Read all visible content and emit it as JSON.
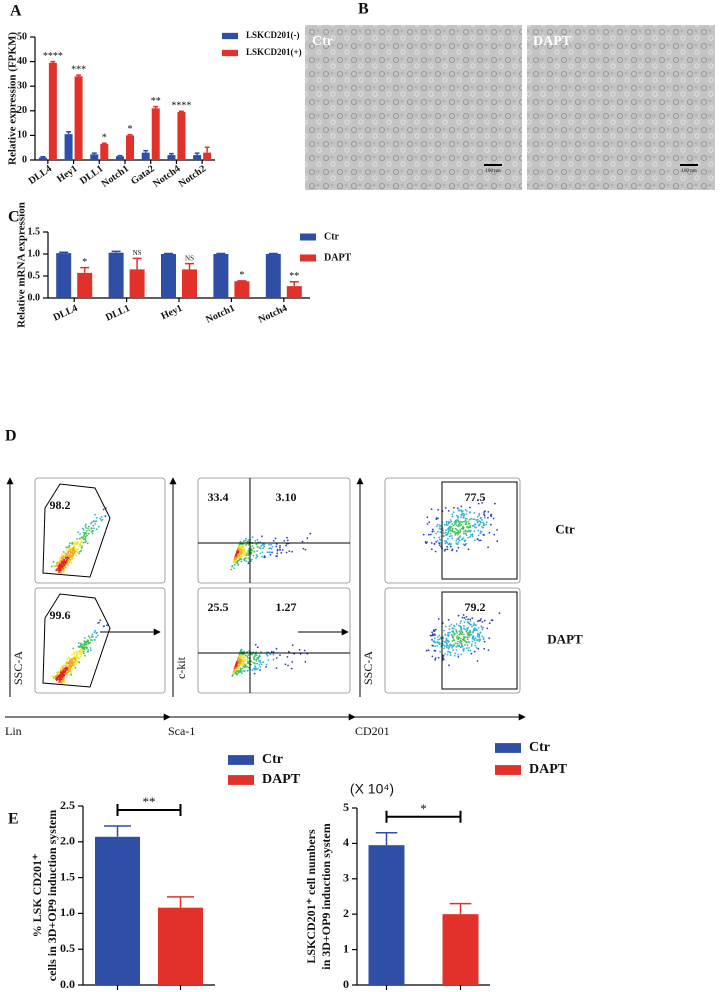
{
  "figure_labels": [
    "A",
    "B",
    "C",
    "D",
    "E"
  ],
  "chart_data": [
    {
      "type": "bar",
      "ylabel": "Relative expression (FPKM)",
      "categories": [
        "DLL4",
        "Hey1",
        "DLL1",
        "Notch1",
        "Gata2",
        "Notch4",
        "Notch2"
      ],
      "series": [
        {
          "name": "LSKCD201(-)",
          "color": "#2f4fa6",
          "values": [
            1,
            10.5,
            2.3,
            1.5,
            3,
            2,
            2
          ],
          "errors": [
            0.3,
            1,
            0.5,
            0.3,
            0.8,
            0.6,
            0.8
          ]
        },
        {
          "name": "LSKCD201(+)",
          "color": "#e2302a",
          "values": [
            39.5,
            34,
            6.5,
            10,
            21,
            19.5,
            3
          ],
          "errors": [
            0.5,
            0.5,
            0.3,
            0.3,
            0.7,
            0.3,
            2.2
          ],
          "annotations": [
            "****",
            "***",
            "*",
            "*",
            "**",
            "****",
            null
          ]
        }
      ],
      "ylim": [
        0,
        50
      ],
      "yticks": [
        0,
        10,
        20,
        30,
        40,
        50
      ]
    },
    {
      "type": "bar",
      "ylabel": "Relative mRNA expression",
      "categories": [
        "DLL4",
        "DLL1",
        "Hey1",
        "Notch1",
        "Notch4"
      ],
      "series": [
        {
          "name": "Ctr",
          "color": "#2f4fa6",
          "values": [
            1.02,
            1.03,
            1.0,
            1.0,
            1.0
          ],
          "errors": [
            0.02,
            0.03,
            0.01,
            0.01,
            0.01
          ]
        },
        {
          "name": "DAPT",
          "color": "#e2302a",
          "values": [
            0.57,
            0.65,
            0.65,
            0.38,
            0.27
          ],
          "errors": [
            0.12,
            0.25,
            0.13,
            0.01,
            0.1
          ],
          "annotations": [
            "*",
            "NS",
            "NS",
            "*",
            "**"
          ]
        }
      ],
      "ylim": [
        0,
        1.5
      ],
      "yticks": [
        {
          "value": 0,
          "label": "0.0"
        },
        {
          "value": 0.5,
          "label": "0.5"
        },
        {
          "value": 1,
          "label": "1.0"
        },
        {
          "value": 1.5,
          "label": "1.5"
        }
      ]
    },
    {
      "type": "bar",
      "ylabel": [
        "% LSK CD201⁺",
        "cells in 3D+OP9 induction system"
      ],
      "categories": [
        null
      ],
      "series": [
        {
          "name": "Ctr",
          "color": "#2f4fa6",
          "values": [
            2.07
          ],
          "errors": [
            0.15
          ]
        },
        {
          "name": "DAPT",
          "color": "#e2302a",
          "values": [
            1.08
          ],
          "errors": [
            0.15
          ]
        }
      ],
      "significance": "**",
      "ylim": [
        0,
        2.5
      ],
      "yticks": [
        {
          "value": 0,
          "label": "0.0"
        },
        {
          "value": 0.5,
          "label": "0.5"
        },
        {
          "value": 1,
          "label": "1.0"
        },
        {
          "value": 1.5,
          "label": "1.5"
        },
        {
          "value": 2,
          "label": "2.0"
        },
        {
          "value": 2.5,
          "label": "2.5"
        }
      ]
    },
    {
      "type": "bar",
      "ylabel": [
        "LSKCD201⁺ cell numbers",
        "in 3D+OP9 induction system"
      ],
      "multiplier": "(X 10⁴)",
      "categories": [
        null
      ],
      "series": [
        {
          "name": "Ctr",
          "color": "#2f4fa6",
          "values": [
            3.95
          ],
          "errors": [
            0.35
          ]
        },
        {
          "name": "DAPT",
          "color": "#e2302a",
          "values": [
            2.0
          ],
          "errors": [
            0.3
          ]
        }
      ],
      "significance": "*",
      "ylim": [
        0,
        5
      ],
      "yticks": [
        0,
        1,
        2,
        3,
        4,
        5
      ]
    }
  ],
  "micrographs": [
    {
      "label": "Ctr",
      "scale_bar": "100 μm"
    },
    {
      "label": "DAPT",
      "scale_bar": "100 μm"
    }
  ],
  "flow": {
    "axes": [
      {
        "y": "SSC-A",
        "x": "Lin"
      },
      {
        "y": "c-kit",
        "x": "Sca-1"
      },
      {
        "y": "SSC-A",
        "x": "CD201"
      }
    ],
    "rows": [
      {
        "label": "Ctr",
        "gates": [
          [
            "98.2"
          ],
          [
            "33.4",
            "3.10"
          ],
          [
            "77.5"
          ]
        ]
      },
      {
        "label": "DAPT",
        "gates": [
          [
            "99.6"
          ],
          [
            "25.5",
            "1.27"
          ],
          [
            "79.2"
          ]
        ]
      }
    ]
  }
}
